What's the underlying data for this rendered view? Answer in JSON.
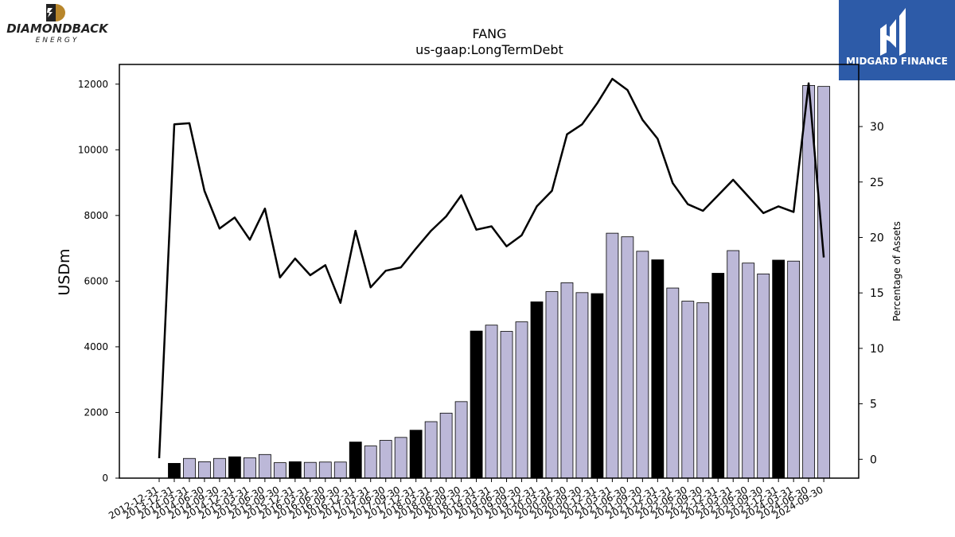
{
  "logos": {
    "left": {
      "brand": "DIAMONDBACK",
      "sub": "ENERGY",
      "icon": "diamondback-d-icon",
      "colors": {
        "dark": "#222222",
        "accent": "#b8862b"
      }
    },
    "right": {
      "brand": "MIDGARD FINANCE",
      "icon": "midgard-m-icon",
      "colors": {
        "background": "#2d5ba8",
        "foreground": "#ffffff"
      }
    }
  },
  "chart_data": {
    "type": "bar",
    "title": "FANG",
    "subtitle": "us-gaap:LongTermDebt",
    "ylabel": "USDm",
    "y2label": "Percentage of Assets",
    "ylim": [
      0,
      12600
    ],
    "y2lim": [
      -1.7,
      35.6
    ],
    "yticks": [
      "0",
      "2000",
      "4000",
      "6000",
      "8000",
      "10000",
      "12000"
    ],
    "y2ticks": [
      "0",
      "5",
      "10",
      "15",
      "20",
      "25",
      "30"
    ],
    "grid": false,
    "colors": {
      "q4_bar": "#000000",
      "bar": "#bcb8d8",
      "line": "#000000"
    },
    "categories": [
      "2012-12-31",
      "2013-12-31",
      "2014-03-31",
      "2014-06-30",
      "2014-09-30",
      "2014-12-31",
      "2015-03-31",
      "2015-06-30",
      "2015-09-30",
      "2015-12-31",
      "2016-03-31",
      "2016-06-30",
      "2016-09-30",
      "2016-12-31",
      "2017-03-31",
      "2017-06-30",
      "2017-09-30",
      "2017-12-31",
      "2018-03-31",
      "2018-06-30",
      "2018-09-30",
      "2018-12-31",
      "2019-03-31",
      "2019-06-30",
      "2019-09-30",
      "2019-12-31",
      "2020-03-31",
      "2020-06-30",
      "2020-09-30",
      "2020-12-31",
      "2021-03-31",
      "2021-06-30",
      "2021-09-30",
      "2021-12-31",
      "2022-03-31",
      "2022-06-30",
      "2022-09-30",
      "2022-12-31",
      "2023-03-31",
      "2023-06-30",
      "2023-09-30",
      "2023-12-31",
      "2024-03-31",
      "2024-06-30",
      "2024-09-30"
    ],
    "series": [
      {
        "type": "bar",
        "values": [
          0,
          450,
          600,
          500,
          600,
          650,
          620,
          720,
          470,
          500,
          480,
          490,
          490,
          1100,
          980,
          1150,
          1240,
          1460,
          1720,
          1980,
          2330,
          4480,
          4660,
          4470,
          4760,
          5370,
          5680,
          5950,
          5650,
          5620,
          7460,
          7350,
          6910,
          6650,
          5790,
          5390,
          5340,
          6240,
          6930,
          6550,
          6220,
          6640,
          6610,
          11960,
          11930
        ],
        "q4": [
          true,
          true,
          false,
          false,
          false,
          true,
          false,
          false,
          false,
          true,
          false,
          false,
          false,
          true,
          false,
          false,
          false,
          true,
          false,
          false,
          false,
          true,
          false,
          false,
          false,
          true,
          false,
          false,
          false,
          true,
          false,
          false,
          false,
          true,
          false,
          false,
          false,
          true,
          false,
          false,
          false,
          true,
          false,
          false,
          false
        ]
      },
      {
        "type": "line",
        "axis": "right",
        "values": [
          0.1,
          30.2,
          30.3,
          24.2,
          20.8,
          21.8,
          19.8,
          22.6,
          16.4,
          18.1,
          16.6,
          17.5,
          14.1,
          20.6,
          15.5,
          17.0,
          17.3,
          19.0,
          20.6,
          21.9,
          23.8,
          20.7,
          21.0,
          19.2,
          20.2,
          22.8,
          24.2,
          29.3,
          30.2,
          32.1,
          34.3,
          33.3,
          30.6,
          28.9,
          24.9,
          23.0,
          22.4,
          23.8,
          25.2,
          23.7,
          22.2,
          22.8,
          22.3,
          33.9,
          18.2
        ]
      }
    ]
  }
}
